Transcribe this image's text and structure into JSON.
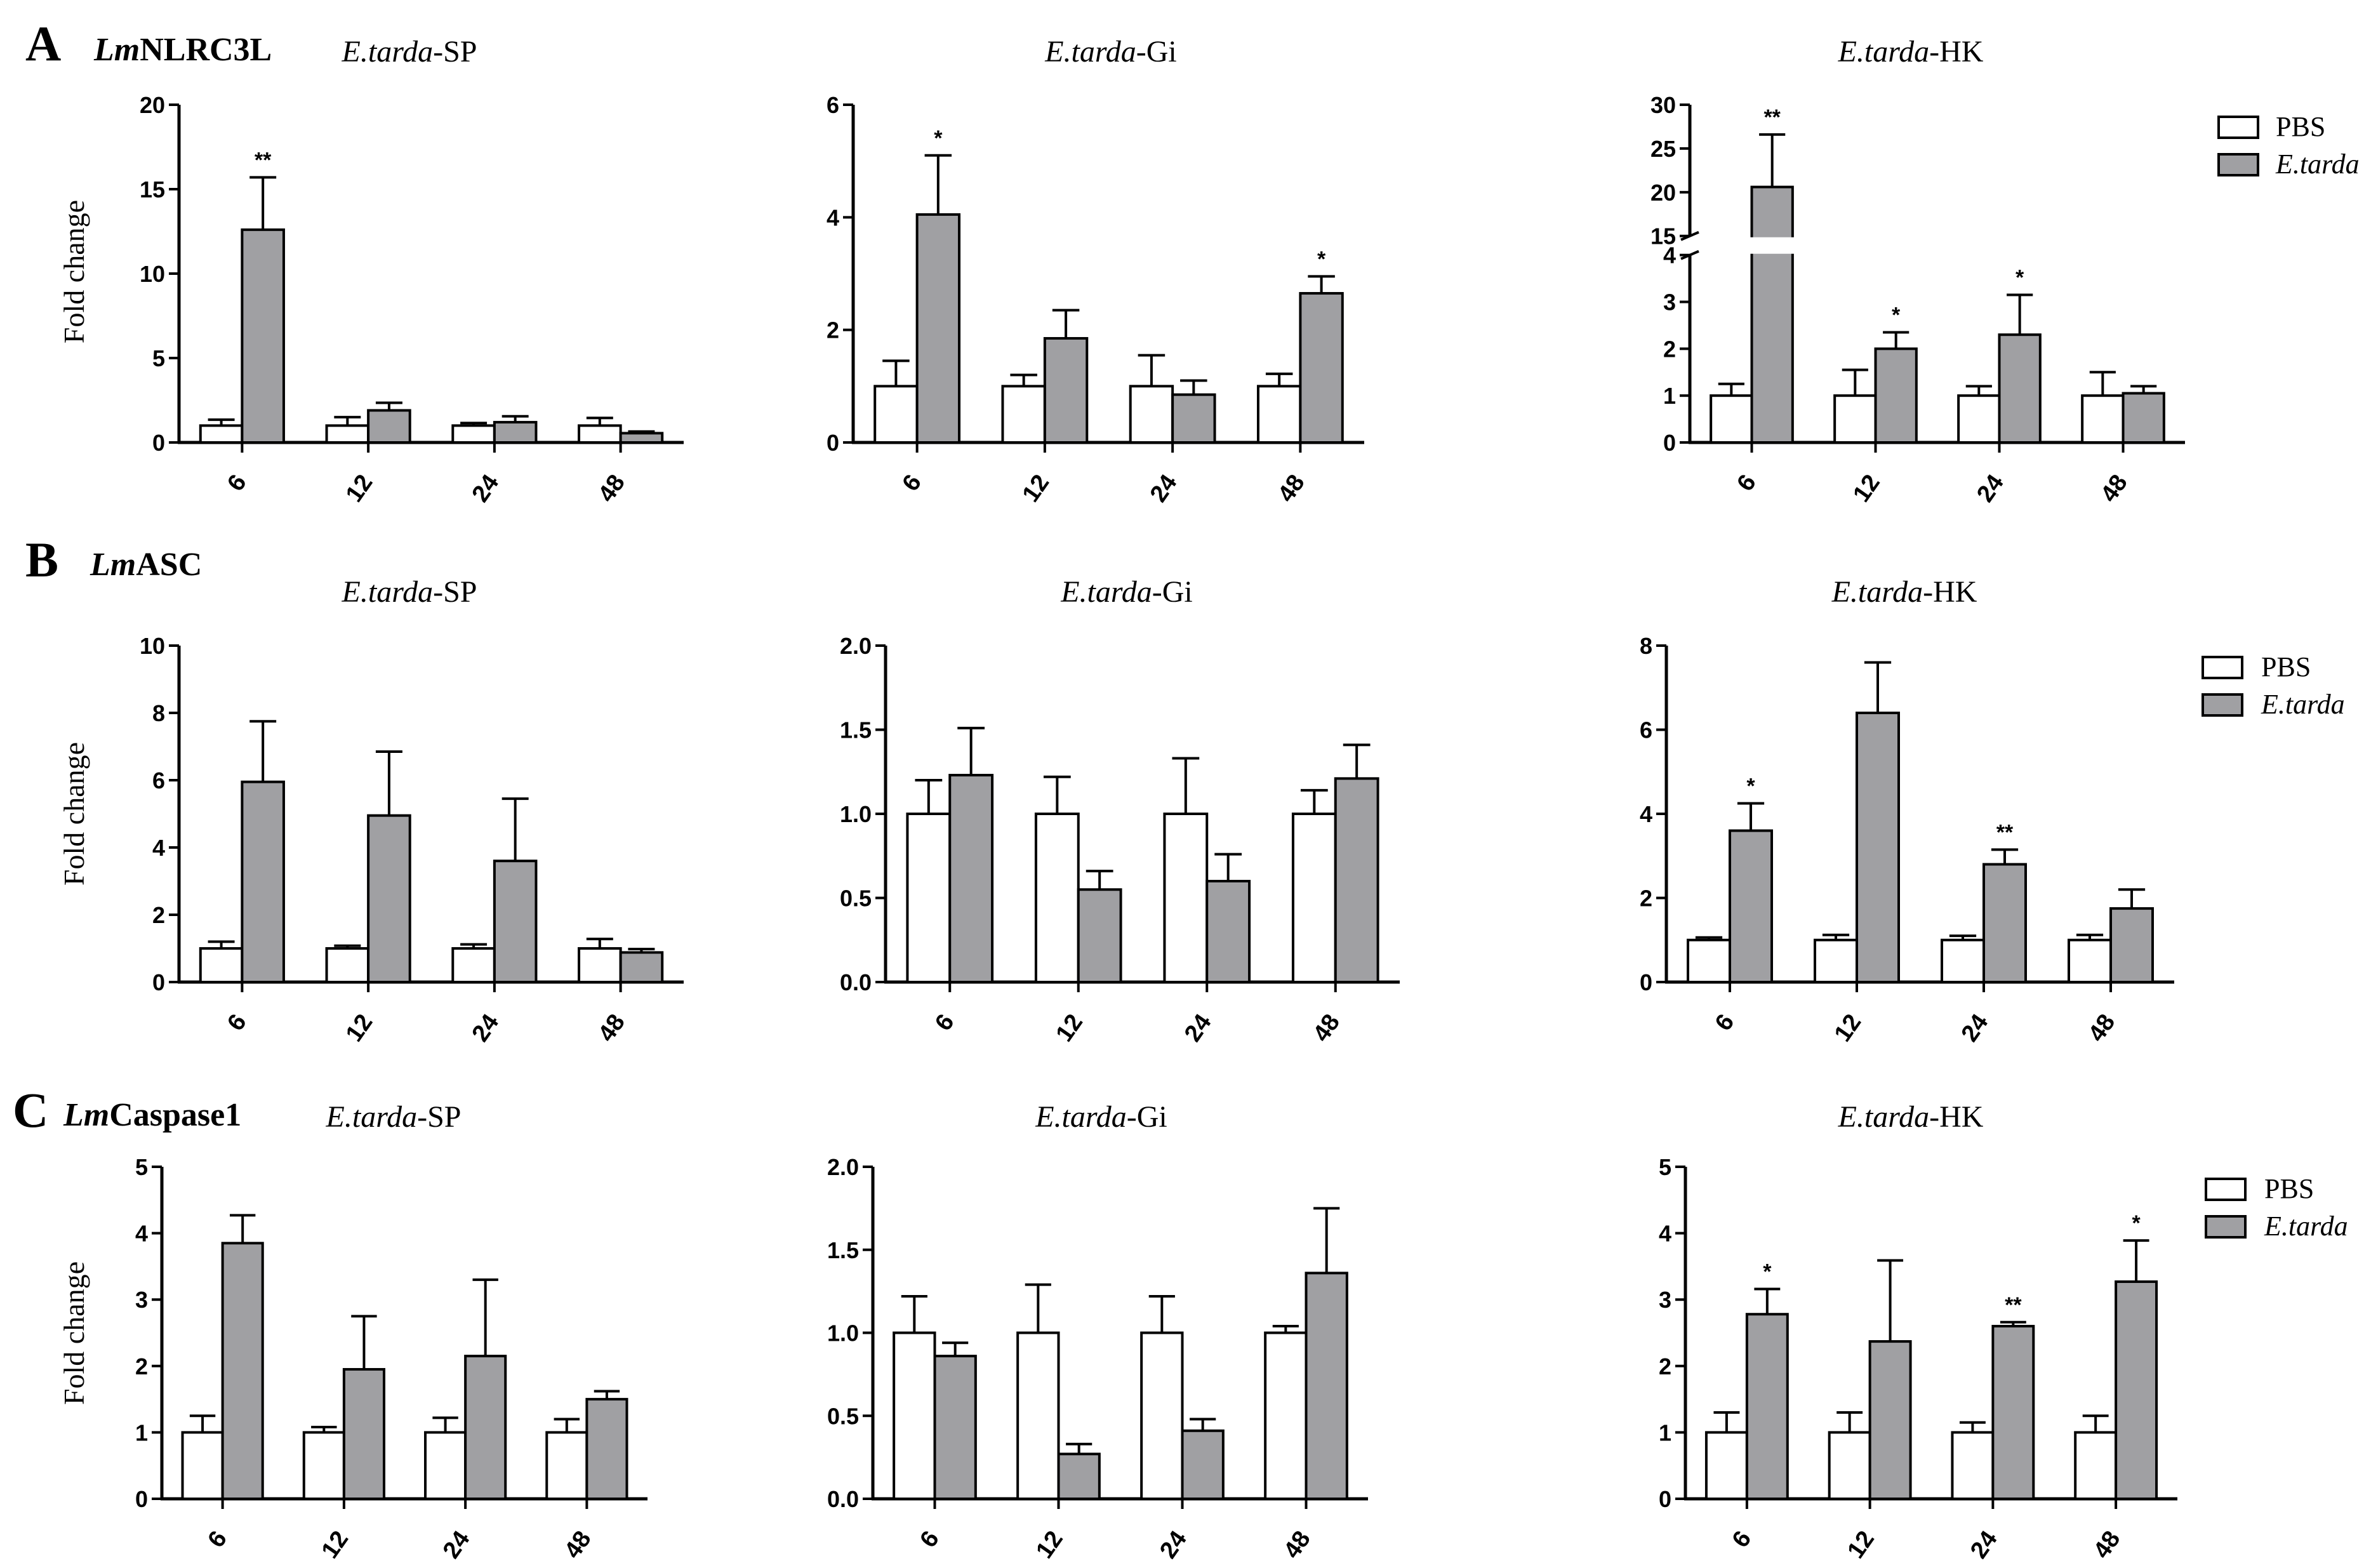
{
  "rows": [
    {
      "letter": "A",
      "gene_prefix": "Lm",
      "gene_suffix": "NLRC3L",
      "ylabel": "Fold change",
      "legend": {
        "items": [
          "PBS",
          "E.tarda"
        ]
      },
      "panels": [
        {
          "title_italic": "E.tarda",
          "title_rest": "-SP"
        },
        {
          "title_italic": "E.tarda",
          "title_rest": "-Gi"
        },
        {
          "title_italic": "E.tarda",
          "title_rest": "-HK"
        }
      ]
    },
    {
      "letter": "B",
      "gene_prefix": "Lm",
      "gene_suffix": "ASC",
      "ylabel": "Fold change",
      "legend": {
        "items": [
          "PBS",
          "E.tarda"
        ]
      },
      "panels": [
        {
          "title_italic": "E.tarda",
          "title_rest": "-SP"
        },
        {
          "title_italic": "E.tarda",
          "title_rest": "-Gi"
        },
        {
          "title_italic": "E.tarda",
          "title_rest": "-HK"
        }
      ]
    },
    {
      "letter": "C",
      "gene_prefix": "Lm",
      "gene_suffix": "Caspase1",
      "ylabel": "Fold change",
      "legend": {
        "items": [
          "PBS",
          "E.tarda"
        ]
      },
      "panels": [
        {
          "title_italic": "E.tarda",
          "title_rest": "-SP"
        },
        {
          "title_italic": "E.tarda",
          "title_rest": "-Gi"
        },
        {
          "title_italic": "E.tarda",
          "title_rest": "-HK"
        }
      ]
    }
  ],
  "colors": {
    "pbs": "#ffffff",
    "etarda": "#a0a0a3",
    "axis": "#000000"
  },
  "chart_data": [
    {
      "type": "bar",
      "title": "LmNLRC3L E.tarda-SP",
      "categories": [
        "6",
        "12",
        "24",
        "48"
      ],
      "ylabel": "Fold change",
      "ylim": [
        0,
        20
      ],
      "yticks": [
        "0",
        "5",
        "10",
        "15",
        "20"
      ],
      "series": [
        {
          "name": "PBS",
          "values": [
            1.0,
            1.0,
            1.0,
            1.0
          ],
          "errors": [
            0.35,
            0.5,
            0.15,
            0.45
          ]
        },
        {
          "name": "E.tarda",
          "values": [
            12.6,
            1.9,
            1.2,
            0.55
          ],
          "errors": [
            3.1,
            0.45,
            0.35,
            0.1
          ]
        }
      ],
      "annotations": [
        "**",
        "",
        "",
        ""
      ]
    },
    {
      "type": "bar",
      "title": "LmNLRC3L E.tarda-Gi",
      "categories": [
        "6",
        "12",
        "24",
        "48"
      ],
      "ylabel": "Fold change",
      "ylim": [
        0,
        6
      ],
      "yticks": [
        "0",
        "2",
        "4",
        "6"
      ],
      "series": [
        {
          "name": "PBS",
          "values": [
            1.0,
            1.0,
            1.0,
            1.0
          ],
          "errors": [
            0.45,
            0.2,
            0.55,
            0.22
          ]
        },
        {
          "name": "E.tarda",
          "values": [
            4.05,
            1.85,
            0.85,
            2.65
          ],
          "errors": [
            1.05,
            0.5,
            0.25,
            0.3
          ]
        }
      ],
      "annotations": [
        "*",
        "",
        "",
        "*"
      ]
    },
    {
      "type": "bar",
      "title": "LmNLRC3L E.tarda-HK",
      "categories": [
        "6",
        "12",
        "24",
        "48"
      ],
      "ylabel": "Fold change",
      "ylim": [
        0,
        30
      ],
      "axis_break": [
        4,
        15
      ],
      "yticks": [
        "0",
        "1",
        "2",
        "3",
        "4",
        "15",
        "20",
        "25",
        "30"
      ],
      "series": [
        {
          "name": "PBS",
          "values": [
            1.0,
            1.0,
            1.0,
            1.0
          ],
          "errors": [
            0.25,
            0.55,
            0.2,
            0.5
          ]
        },
        {
          "name": "E.tarda",
          "values": [
            20.6,
            2.0,
            2.3,
            1.05
          ],
          "errors": [
            6.0,
            0.35,
            0.85,
            0.15
          ]
        }
      ],
      "annotations": [
        "**",
        "*",
        "*",
        ""
      ]
    },
    {
      "type": "bar",
      "title": "LmASC E.tarda-SP",
      "categories": [
        "6",
        "12",
        "24",
        "48"
      ],
      "ylabel": "Fold change",
      "ylim": [
        0,
        10
      ],
      "yticks": [
        "0",
        "2",
        "4",
        "6",
        "8",
        "10"
      ],
      "series": [
        {
          "name": "PBS",
          "values": [
            1.0,
            1.0,
            1.0,
            1.0
          ],
          "errors": [
            0.2,
            0.08,
            0.12,
            0.28
          ]
        },
        {
          "name": "E.tarda",
          "values": [
            5.95,
            4.95,
            3.6,
            0.88
          ],
          "errors": [
            1.8,
            1.9,
            1.85,
            0.1
          ]
        }
      ],
      "annotations": [
        "",
        "",
        "",
        ""
      ]
    },
    {
      "type": "bar",
      "title": "LmASC E.tarda-Gi",
      "categories": [
        "6",
        "12",
        "24",
        "48"
      ],
      "ylabel": "Fold change",
      "ylim": [
        0,
        2.0
      ],
      "yticks": [
        "0.0",
        "0.5",
        "1.0",
        "1.5",
        "2.0"
      ],
      "series": [
        {
          "name": "PBS",
          "values": [
            1.0,
            1.0,
            1.0,
            1.0
          ],
          "errors": [
            0.2,
            0.22,
            0.33,
            0.14
          ]
        },
        {
          "name": "E.tarda",
          "values": [
            1.23,
            0.55,
            0.6,
            1.21
          ],
          "errors": [
            0.28,
            0.11,
            0.16,
            0.2
          ]
        }
      ],
      "annotations": [
        "",
        "",
        "",
        ""
      ]
    },
    {
      "type": "bar",
      "title": "LmASC E.tarda-HK",
      "categories": [
        "6",
        "12",
        "24",
        "48"
      ],
      "ylabel": "Fold change",
      "ylim": [
        0,
        8
      ],
      "yticks": [
        "0",
        "2",
        "4",
        "6",
        "8"
      ],
      "series": [
        {
          "name": "PBS",
          "values": [
            1.0,
            1.0,
            1.0,
            1.0
          ],
          "errors": [
            0.06,
            0.12,
            0.1,
            0.12
          ]
        },
        {
          "name": "E.tarda",
          "values": [
            3.6,
            6.4,
            2.8,
            1.75
          ],
          "errors": [
            0.65,
            1.2,
            0.35,
            0.45
          ]
        }
      ],
      "annotations": [
        "*",
        "",
        "**",
        ""
      ]
    },
    {
      "type": "bar",
      "title": "LmCaspase1 E.tarda-SP",
      "categories": [
        "6",
        "12",
        "24",
        "48"
      ],
      "ylabel": "Fold change",
      "ylim": [
        0,
        5
      ],
      "yticks": [
        "0",
        "1",
        "2",
        "3",
        "4",
        "5"
      ],
      "series": [
        {
          "name": "PBS",
          "values": [
            1.0,
            1.0,
            1.0,
            1.0
          ],
          "errors": [
            0.25,
            0.08,
            0.22,
            0.2
          ]
        },
        {
          "name": "E.tarda",
          "values": [
            3.85,
            1.95,
            2.15,
            1.5
          ],
          "errors": [
            0.42,
            0.8,
            1.15,
            0.12
          ]
        }
      ],
      "annotations": [
        "",
        "",
        "",
        ""
      ]
    },
    {
      "type": "bar",
      "title": "LmCaspase1 E.tarda-Gi",
      "categories": [
        "6",
        "12",
        "24",
        "48"
      ],
      "ylabel": "Fold change",
      "ylim": [
        0,
        2.0
      ],
      "yticks": [
        "0.0",
        "0.5",
        "1.0",
        "1.5",
        "2.0"
      ],
      "series": [
        {
          "name": "PBS",
          "values": [
            1.0,
            1.0,
            1.0,
            1.0
          ],
          "errors": [
            0.22,
            0.29,
            0.22,
            0.04
          ]
        },
        {
          "name": "E.tarda",
          "values": [
            0.86,
            0.27,
            0.41,
            1.36
          ],
          "errors": [
            0.08,
            0.06,
            0.07,
            0.39
          ]
        }
      ],
      "annotations": [
        "",
        "",
        "",
        ""
      ]
    },
    {
      "type": "bar",
      "title": "LmCaspase1 E.tarda-HK",
      "categories": [
        "6",
        "12",
        "24",
        "48"
      ],
      "ylabel": "Fold change",
      "ylim": [
        0,
        5
      ],
      "yticks": [
        "0",
        "1",
        "2",
        "3",
        "4",
        "5"
      ],
      "series": [
        {
          "name": "PBS",
          "values": [
            1.0,
            1.0,
            1.0,
            1.0
          ],
          "errors": [
            0.3,
            0.3,
            0.15,
            0.25
          ]
        },
        {
          "name": "E.tarda",
          "values": [
            2.78,
            2.37,
            2.6,
            3.27
          ],
          "errors": [
            0.38,
            1.22,
            0.06,
            0.62
          ]
        }
      ],
      "annotations": [
        "*",
        "",
        "**",
        "*"
      ]
    }
  ]
}
